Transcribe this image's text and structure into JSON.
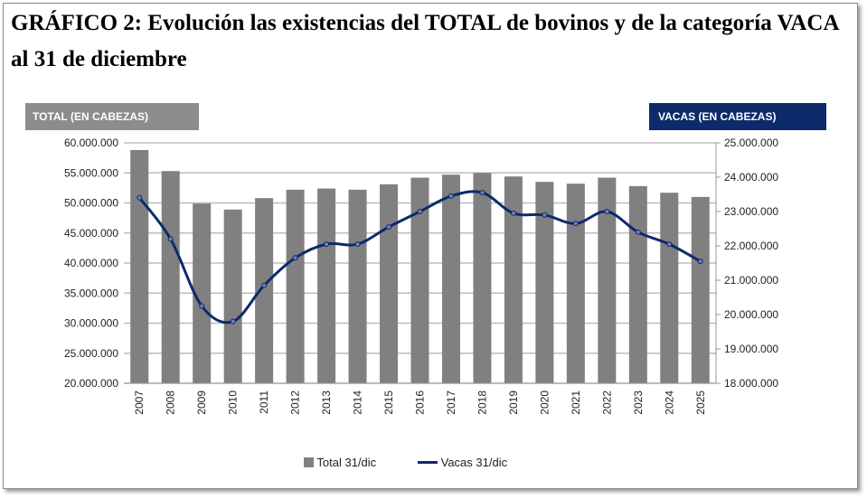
{
  "title": "GRÁFICO 2: Evolución las existencias del TOTAL de bovinos y de la categoría VACA al 31 de diciembre",
  "chart_data": {
    "type": "bar",
    "title": "GRÁFICO 2: Evolución las existencias del TOTAL de bovinos y de la categoría VACA al 31 de diciembre",
    "ylabel_left": "TOTAL (EN CABEZAS)",
    "ylabel_right": "VACAS (EN CABEZAS)",
    "categories": [
      "2007",
      "2008",
      "2009",
      "2010",
      "2011",
      "2012",
      "2013",
      "2014",
      "2015",
      "2016",
      "2017",
      "2018",
      "2019",
      "2020",
      "2021",
      "2022",
      "2023",
      "2024",
      "2025"
    ],
    "ylim_left": [
      20000000,
      60000000
    ],
    "ylim_right": [
      18000000,
      25000000
    ],
    "yticks_left": [
      "20.000.000",
      "25.000.000",
      "30.000.000",
      "35.000.000",
      "40.000.000",
      "45.000.000",
      "50.000.000",
      "55.000.000",
      "60.000.000"
    ],
    "yticks_right": [
      "18.000.000",
      "19.000.000",
      "20.000.000",
      "21.000.000",
      "22.000.000",
      "23.000.000",
      "24.000.000",
      "25.000.000"
    ],
    "grid": true,
    "legend_position": "bottom",
    "series": [
      {
        "name": "Total 31/dic",
        "type": "bar",
        "axis": "left",
        "color": "#808080",
        "values": [
          58800000,
          55300000,
          49900000,
          48900000,
          50800000,
          52200000,
          52400000,
          52200000,
          53100000,
          54200000,
          54700000,
          55000000,
          54400000,
          53500000,
          53200000,
          54200000,
          52800000,
          51700000,
          51000000
        ]
      },
      {
        "name": "Vacas 31/dic",
        "type": "line",
        "axis": "right",
        "color": "#0d2a6b",
        "values": [
          23400000,
          22200000,
          20250000,
          19800000,
          20850000,
          21650000,
          22050000,
          22050000,
          22550000,
          23000000,
          23450000,
          23550000,
          22950000,
          22900000,
          22650000,
          23000000,
          22400000,
          22050000,
          21550000
        ]
      }
    ]
  }
}
